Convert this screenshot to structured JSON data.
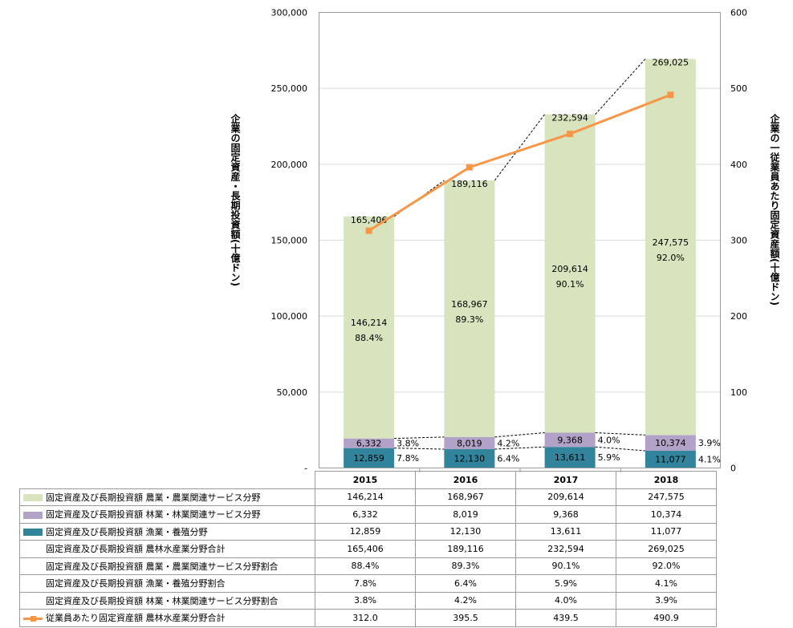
{
  "chart_data": {
    "type": "bar",
    "stacked": true,
    "categories": [
      "2015",
      "2016",
      "2017",
      "2018"
    ],
    "series": [
      {
        "name": "固定資産及び長期投資額 漁業・養殖分野",
        "key": "fishery",
        "color": "#31849b",
        "values": [
          12859,
          12130,
          13611,
          11077
        ],
        "labels": [
          "12,859",
          "12,130",
          "13,611",
          "11,077"
        ]
      },
      {
        "name": "固定資産及び長期投資額 林業・林業関連サービス分野",
        "key": "forestry",
        "color": "#b3a2c7",
        "values": [
          6332,
          8019,
          9368,
          10374
        ],
        "labels": [
          "6,332",
          "8,019",
          "9,368",
          "10,374"
        ]
      },
      {
        "name": "固定資産及び長期投資額 農業・農業関連サービス分野",
        "key": "agri",
        "color": "#d7e4bd",
        "values": [
          146214,
          168967,
          209614,
          247575
        ],
        "labels": [
          "146,214",
          "168,967",
          "209,614",
          "247,575"
        ]
      }
    ],
    "totals": {
      "name": "固定資産及び長期投資額 農林水産業分野合計",
      "values": [
        165406,
        189116,
        232594,
        269025
      ],
      "labels": [
        "165,406",
        "189,116",
        "232,594",
        "269,025"
      ]
    },
    "shares": {
      "agri": {
        "name": "固定資産及び長期投資額 農業・農業関連サービス分野割合",
        "labels": [
          "88.4%",
          "89.3%",
          "90.1%",
          "92.0%"
        ]
      },
      "fishery": {
        "name": "固定資産及び長期投資額 漁業・養殖分野割合",
        "labels": [
          "7.8%",
          "6.4%",
          "5.9%",
          "4.1%"
        ]
      },
      "forestry": {
        "name": "固定資産及び長期投資額 林業・林業関連サービス分野割合",
        "labels": [
          "3.8%",
          "4.2%",
          "4.0%",
          "3.9%"
        ]
      }
    },
    "line": {
      "name": "従業員あたり固定資産額 農林水産業分野合計",
      "color": "#f79646",
      "values": [
        312.0,
        395.5,
        439.5,
        490.9
      ],
      "labels": [
        "312.0",
        "395.5",
        "439.5",
        "490.9"
      ],
      "axis": "right"
    },
    "y_left": {
      "min": 0,
      "max": 300000,
      "step": 50000,
      "title": "企業の固定資産・長期投資額(十億ドン)",
      "tick_labels": [
        "-",
        "50,000",
        "100,000",
        "150,000",
        "200,000",
        "250,000",
        "300,000"
      ]
    },
    "y_right": {
      "min": 0,
      "max": 600,
      "step": 100,
      "title": "企業の一従業員あたり固定資産額(十億ドン)",
      "tick_labels": [
        "0",
        "100",
        "200",
        "300",
        "400",
        "500",
        "600"
      ]
    },
    "grid": true,
    "legend": "data-table-below"
  },
  "table": {
    "rows": [
      {
        "key": "agri",
        "marker": "box",
        "color": "#d7e4bd",
        "label": "固定資産及び長期投資額 農業・農業関連サービス分野",
        "cells": [
          "146,214",
          "168,967",
          "209,614",
          "247,575"
        ]
      },
      {
        "key": "forestry",
        "marker": "box",
        "color": "#b3a2c7",
        "label": "固定資産及び長期投資額 林業・林業関連サービス分野",
        "cells": [
          "6,332",
          "8,019",
          "9,368",
          "10,374"
        ]
      },
      {
        "key": "fishery",
        "marker": "box",
        "color": "#31849b",
        "label": "固定資産及び長期投資額 漁業・養殖分野",
        "cells": [
          "12,859",
          "12,130",
          "13,611",
          "11,077"
        ]
      },
      {
        "key": "total",
        "marker": "none",
        "label": "固定資産及び長期投資額 農林水産業分野合計",
        "cells": [
          "165,406",
          "189,116",
          "232,594",
          "269,025"
        ]
      },
      {
        "key": "agri-share",
        "marker": "none",
        "label": "固定資産及び長期投資額 農業・農業関連サービス分野割合",
        "cells": [
          "88.4%",
          "89.3%",
          "90.1%",
          "92.0%"
        ]
      },
      {
        "key": "fishery-share",
        "marker": "none",
        "label": "固定資産及び長期投資額 漁業・養殖分野割合",
        "cells": [
          "7.8%",
          "6.4%",
          "5.9%",
          "4.1%"
        ]
      },
      {
        "key": "forestry-share",
        "marker": "none",
        "label": "固定資産及び長期投資額 林業・林業関連サービス分野割合",
        "cells": [
          "3.8%",
          "4.2%",
          "4.0%",
          "3.9%"
        ]
      },
      {
        "key": "per-employee",
        "marker": "line",
        "color": "#f79646",
        "label": "従業員あたり固定資産額 農林水産業分野合計",
        "cells": [
          "312.0",
          "395.5",
          "439.5",
          "490.9"
        ]
      }
    ]
  }
}
